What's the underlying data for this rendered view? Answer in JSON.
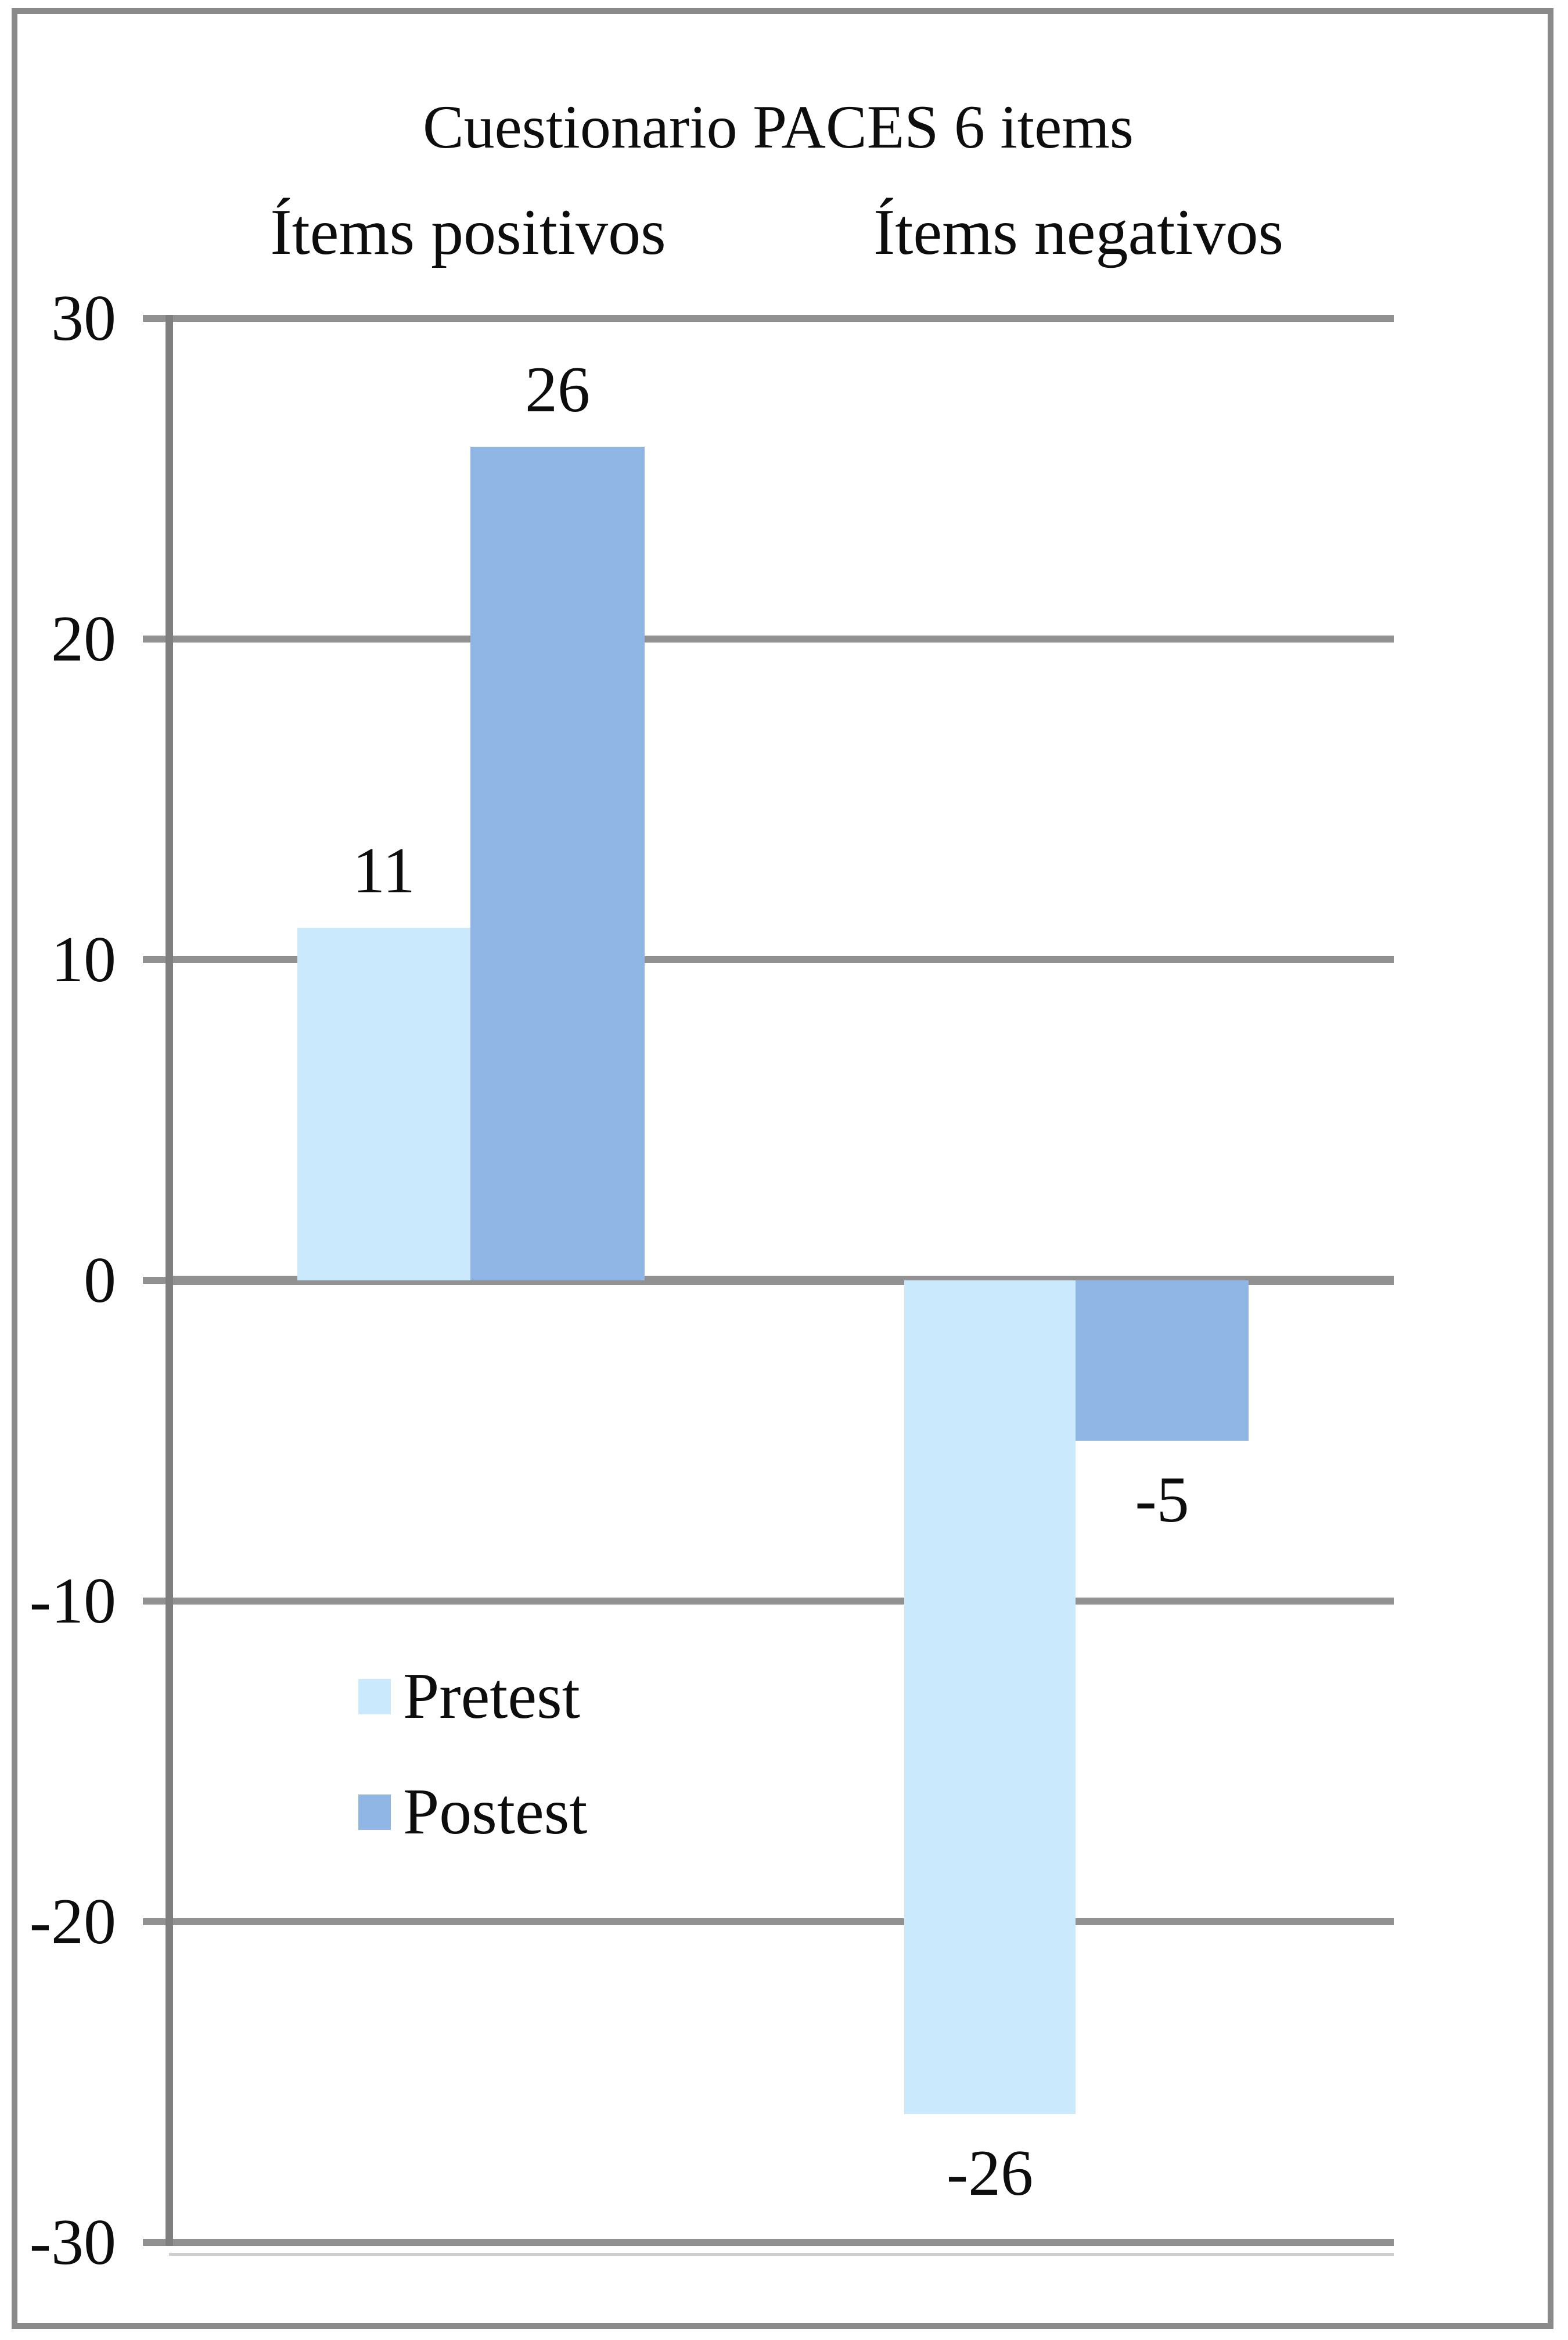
{
  "page": {
    "background": "#ffffff",
    "frame_border_color": "#8a8a8a"
  },
  "chart_data": {
    "type": "bar",
    "title": "Cuestionario PACES 6 items",
    "categories": [
      "Ítems positivos",
      "Ítems negativos"
    ],
    "series": [
      {
        "name": "Pretest",
        "color": "#cbe9fc",
        "values": [
          11,
          -26
        ]
      },
      {
        "name": "Postest",
        "color": "#8fb6e4",
        "values": [
          26,
          -5
        ]
      }
    ],
    "data_labels_shown": true,
    "y_axis": {
      "min": -30,
      "max": 30,
      "step": 10,
      "ticks": [
        30,
        20,
        10,
        0,
        -10,
        -20,
        -30
      ]
    },
    "grid": true,
    "gridline_color": "#919191",
    "axis_color": "#7f7f7f",
    "text_color": "#0d0d0d",
    "legend_position": "middle-left"
  }
}
